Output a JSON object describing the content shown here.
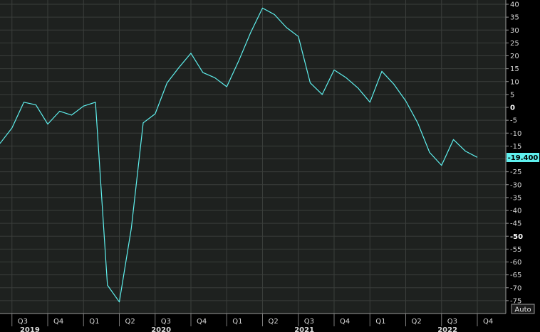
{
  "chart_data": {
    "type": "line",
    "title": "",
    "xlabel": "",
    "ylabel": "",
    "ylim": [
      -77,
      40
    ],
    "y_ticks": [
      40,
      35,
      30,
      25,
      20,
      15,
      10,
      5,
      0,
      -5,
      -10,
      -15,
      -20,
      -25,
      -30,
      -35,
      -40,
      -45,
      -50,
      -55,
      -60,
      -65,
      -70,
      -75
    ],
    "y_tick_labels": [
      "40",
      "35",
      "30",
      "25",
      "20",
      "15",
      "10",
      "5",
      "0",
      "-5",
      "-10",
      "-15",
      "-20",
      "-25",
      "-30",
      "-35",
      "-40",
      "-45",
      "-50",
      "-55",
      "-60",
      "-65",
      "-70",
      "-75"
    ],
    "bold_y_ticks": [
      "0",
      "-50"
    ],
    "x_quarter_ticks": [
      {
        "label": "Q3",
        "month": 7
      },
      {
        "label": "Q4",
        "month": 10
      },
      {
        "label": "Q1",
        "month": 13
      },
      {
        "label": "Q2",
        "month": 16
      },
      {
        "label": "Q3",
        "month": 19
      },
      {
        "label": "Q4",
        "month": 22
      },
      {
        "label": "Q1",
        "month": 25
      },
      {
        "label": "Q2",
        "month": 28
      },
      {
        "label": "Q3",
        "month": 31
      },
      {
        "label": "Q4",
        "month": 34
      },
      {
        "label": "Q1",
        "month": 37
      },
      {
        "label": "Q2",
        "month": 40
      },
      {
        "label": "Q3",
        "month": 43
      },
      {
        "label": "Q4",
        "month": 46
      }
    ],
    "x_year_labels": [
      {
        "label": "2019",
        "month": 8.5
      },
      {
        "label": "2020",
        "month": 19.5
      },
      {
        "label": "2021",
        "month": 31.5
      },
      {
        "label": "2022",
        "month": 43.5
      }
    ],
    "series": [
      {
        "color": "#5ff0ee",
        "points": [
          {
            "month": 6,
            "y": -14
          },
          {
            "month": 7,
            "y": -8
          },
          {
            "month": 8,
            "y": 2
          },
          {
            "month": 9,
            "y": 1
          },
          {
            "month": 10,
            "y": -6.5
          },
          {
            "month": 11,
            "y": -1.5
          },
          {
            "month": 12,
            "y": -3
          },
          {
            "month": 13,
            "y": 0.5
          },
          {
            "month": 14,
            "y": 2
          },
          {
            "month": 15,
            "y": -69
          },
          {
            "month": 16,
            "y": -75.5
          },
          {
            "month": 17,
            "y": -47
          },
          {
            "month": 18,
            "y": -6
          },
          {
            "month": 19,
            "y": -2.5
          },
          {
            "month": 20,
            "y": 9.5
          },
          {
            "month": 21,
            "y": 15.5
          },
          {
            "month": 22,
            "y": 21
          },
          {
            "month": 23,
            "y": 13.5
          },
          {
            "month": 24,
            "y": 11.5
          },
          {
            "month": 25,
            "y": 8
          },
          {
            "month": 26,
            "y": 18
          },
          {
            "month": 27,
            "y": 29
          },
          {
            "month": 28,
            "y": 38.5
          },
          {
            "month": 29,
            "y": 36
          },
          {
            "month": 30,
            "y": 31
          },
          {
            "month": 31,
            "y": 27.5
          },
          {
            "month": 32,
            "y": 9.5
          },
          {
            "month": 33,
            "y": 5
          },
          {
            "month": 34,
            "y": 14.5
          },
          {
            "month": 35,
            "y": 11.5
          },
          {
            "month": 36,
            "y": 7.5
          },
          {
            "month": 37,
            "y": 2
          },
          {
            "month": 38,
            "y": 14
          },
          {
            "month": 39,
            "y": 9
          },
          {
            "month": 40,
            "y": 2.5
          },
          {
            "month": 41,
            "y": -6
          },
          {
            "month": 42,
            "y": -17.5
          },
          {
            "month": 43,
            "y": -22.5
          },
          {
            "month": 44,
            "y": -12.5
          },
          {
            "month": 45,
            "y": -17
          },
          {
            "month": 46,
            "y": -19.4
          }
        ]
      }
    ],
    "last_value_label": "-19.400",
    "grid": true,
    "legend": "none"
  },
  "controls": {
    "auto_label": "Auto"
  },
  "colors": {
    "background": "#000000",
    "plot_bg": "#1e211f",
    "grid": "#3a3e3b",
    "line": "#5ff0ee",
    "last_label_bg": "#5ff0ee"
  }
}
